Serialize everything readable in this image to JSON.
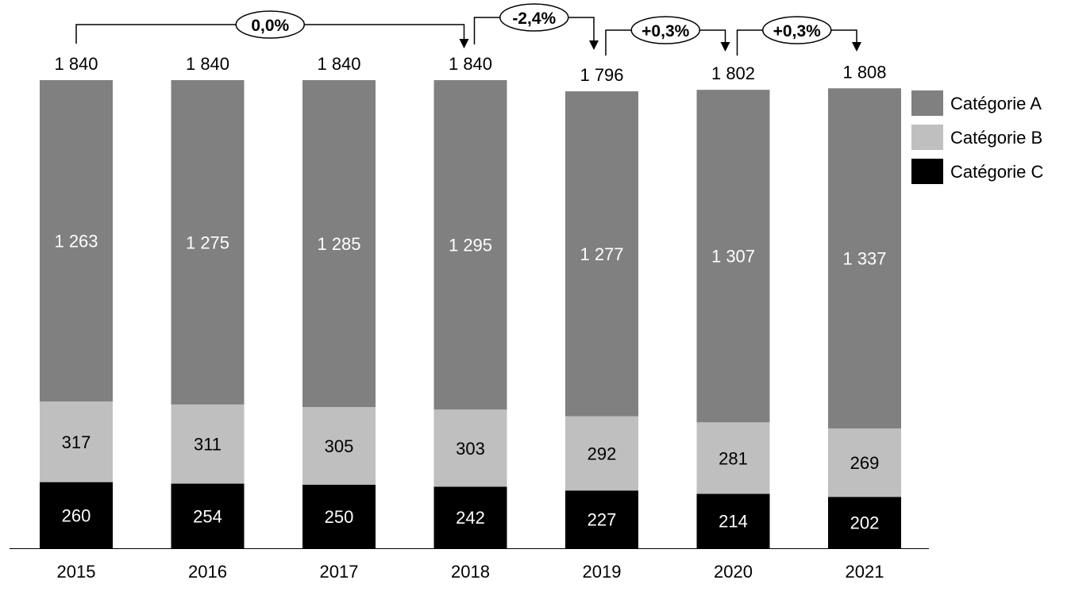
{
  "chart_data": {
    "type": "bar",
    "stacked": true,
    "categories": [
      "2015",
      "2016",
      "2017",
      "2018",
      "2019",
      "2020",
      "2021"
    ],
    "series": [
      {
        "name": "Catégorie C",
        "color": "#000000",
        "label_color": "#ffffff",
        "values": [
          260,
          254,
          250,
          242,
          227,
          214,
          202
        ]
      },
      {
        "name": "Catégorie B",
        "color": "#bfbfbf",
        "label_color": "#000000",
        "values": [
          317,
          311,
          305,
          303,
          292,
          281,
          269
        ]
      },
      {
        "name": "Catégorie A",
        "color": "#808080",
        "label_color": "#ffffff",
        "values": [
          1263,
          1275,
          1285,
          1295,
          1277,
          1307,
          1337
        ]
      }
    ],
    "totals": [
      1840,
      1840,
      1840,
      1840,
      1796,
      1802,
      1808
    ],
    "total_labels": [
      "1 840",
      "1 840",
      "1 840",
      "1 840",
      "1 796",
      "1 802",
      "1 808"
    ],
    "value_labels": {
      "Catégorie A": [
        "1 263",
        "1 275",
        "1 285",
        "1 295",
        "1 277",
        "1 307",
        "1 337"
      ],
      "Catégorie B": [
        "317",
        "311",
        "305",
        "303",
        "292",
        "281",
        "269"
      ],
      "Catégorie C": [
        "260",
        "254",
        "250",
        "242",
        "227",
        "214",
        "202"
      ]
    },
    "growth_annotations": [
      {
        "from": "2015",
        "to": "2018",
        "label": "0,0%"
      },
      {
        "from": "2018",
        "to": "2019",
        "label": "-2,4%"
      },
      {
        "from": "2019",
        "to": "2020",
        "label": "+0,3%"
      },
      {
        "from": "2020",
        "to": "2021",
        "label": "+0,3%"
      }
    ],
    "legend": {
      "position": "right",
      "order": [
        "Catégorie A",
        "Catégorie B",
        "Catégorie C"
      ]
    },
    "ylim": [
      0,
      1840
    ],
    "grid": false,
    "title": "",
    "xlabel": "",
    "ylabel": ""
  }
}
